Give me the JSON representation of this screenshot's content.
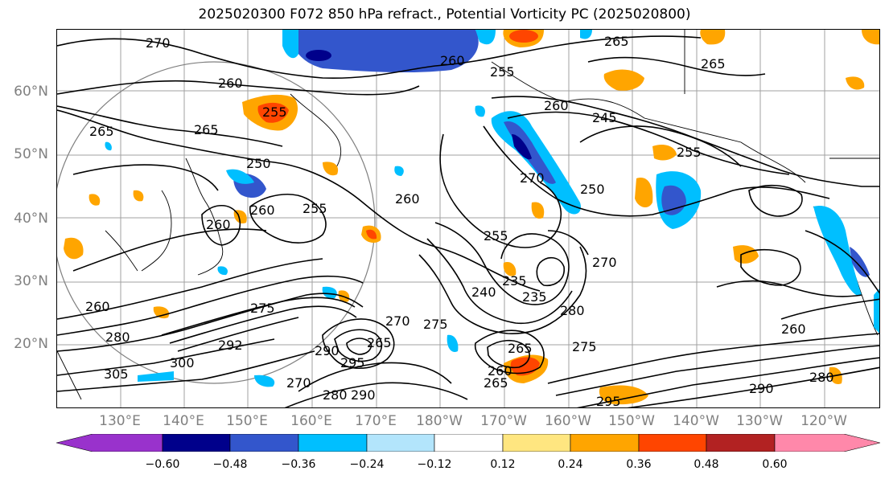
{
  "title": "2025020300 F072 850 hPa refract., Potential Vorticity PC (2025020800)",
  "lat_labels": [
    "60°N",
    "50°N",
    "40°N",
    "30°N",
    "20°N"
  ],
  "lon_labels": [
    "130°E",
    "140°E",
    "150°E",
    "160°E",
    "170°E",
    "180°W",
    "170°W",
    "160°W",
    "150°W",
    "140°W",
    "130°W",
    "120°W"
  ],
  "contour_labels": [
    "270",
    "265",
    "260",
    "255",
    "265",
    "265",
    "265",
    "260",
    "260",
    "255",
    "260",
    "245",
    "255",
    "250",
    "270",
    "250",
    "255",
    "260",
    "255",
    "260",
    "240",
    "235",
    "235",
    "270",
    "280",
    "275",
    "260",
    "280",
    "275",
    "270",
    "265",
    "260",
    "305",
    "300",
    "292",
    "290",
    "265",
    "295",
    "280",
    "290",
    "270",
    "295",
    "260",
    "275",
    "280",
    "265",
    "290"
  ],
  "colorbar": {
    "ticks": [
      "−0.60",
      "−0.48",
      "−0.36",
      "−0.24",
      "−0.12",
      "0.12",
      "0.24",
      "0.36",
      "0.48",
      "0.60"
    ],
    "colors": [
      "#9932CC",
      "#00008B",
      "#3356CC",
      "#00BFFF",
      "#B3E5FC",
      "#FFFFFF",
      "#FFE680",
      "#FFA500",
      "#FF4500",
      "#B22222",
      "#FF88AA"
    ]
  },
  "map_colors": {
    "contour": "#000000",
    "grid": "#a0a0a0",
    "range_ring": "#808080"
  }
}
